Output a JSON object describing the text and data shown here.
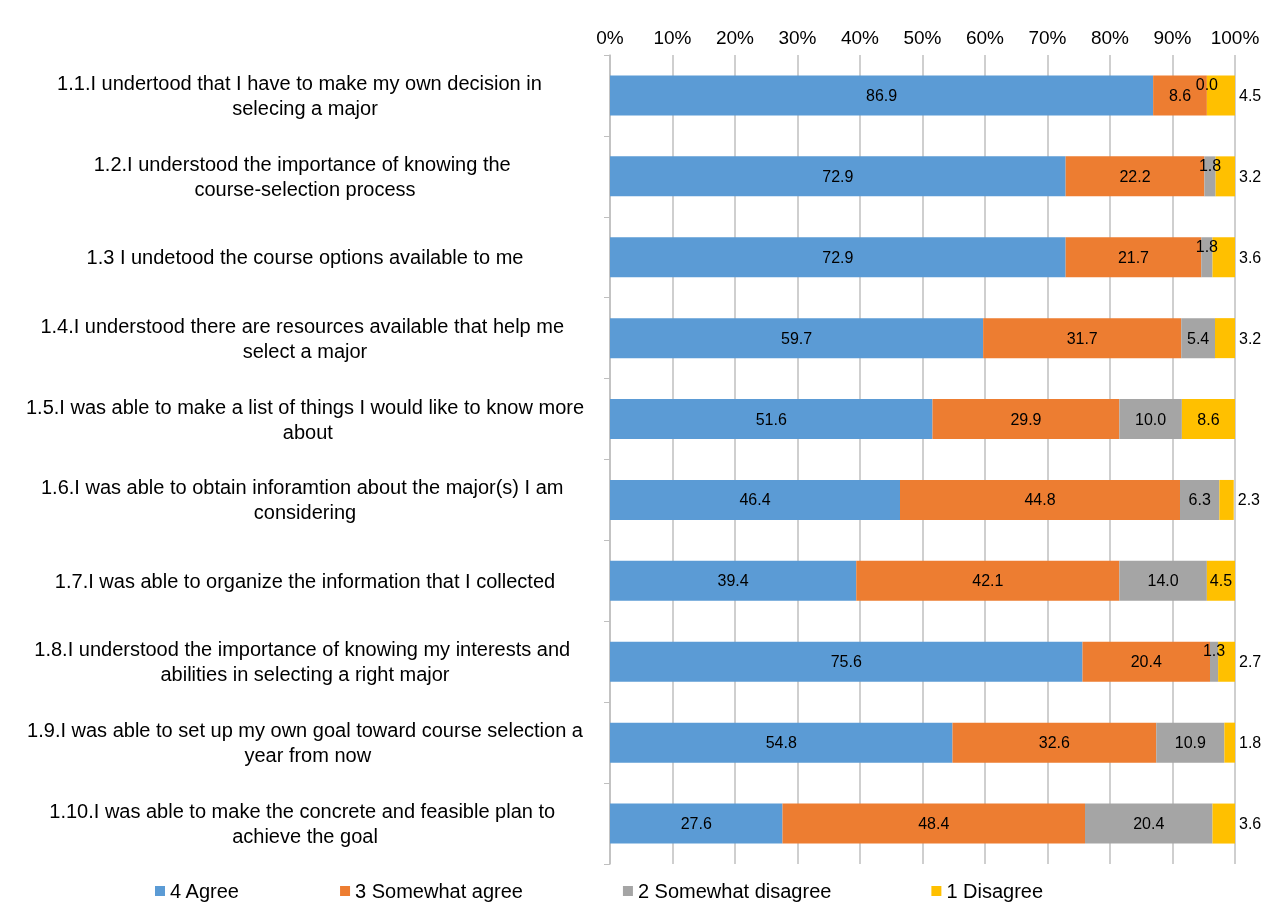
{
  "chart_data": {
    "type": "bar",
    "orientation": "horizontal",
    "stacked": true,
    "grid": "x",
    "legend": "bottom",
    "categories": [
      "1.1.I undertood that I have to make my own decision in  selecing a major",
      "1.2.I understood the importance of knowing the course-selection process",
      "1.3 I undetood the course options available to me",
      "1.4.I understood there are resources available that help me select a major",
      "1.5.I was able to make a list of things I would like to know more about",
      "1.6.I was able to obtain inforamtion about the major(s) I am considering",
      "1.7.I was able to organize the information that I collected",
      "1.8.I understood the importance of knowing my interests and abilities in selecting a right major",
      "1.9.I was able to set up my own goal toward course selection a year from now",
      "1.10.I was able to make the concrete and feasible plan to achieve the goal"
    ],
    "series": [
      {
        "name": "4 Agree",
        "color": "#5b9bd5",
        "values": [
          86.9,
          72.9,
          72.9,
          59.7,
          51.6,
          46.4,
          39.4,
          75.6,
          54.8,
          27.6
        ],
        "value_labels": [
          "86.9",
          "72.9",
          "72.9",
          "59.7",
          "51.6",
          "46.4",
          "39.4",
          "75.6",
          "54.8",
          "27.6"
        ]
      },
      {
        "name": "3 Somewhat agree",
        "color": "#ed7d31",
        "values": [
          8.6,
          22.2,
          21.7,
          31.7,
          29.9,
          44.8,
          42.1,
          20.4,
          32.6,
          48.4
        ],
        "value_labels": [
          "8.6",
          "22.2",
          "21.7",
          "31.7",
          "29.9",
          "44.8",
          "42.1",
          "20.4",
          "32.6",
          "48.4"
        ]
      },
      {
        "name": "2 Somewhat disagree",
        "color": "#a5a5a5",
        "values": [
          0.0,
          1.8,
          1.8,
          5.4,
          10.0,
          6.3,
          14.0,
          1.3,
          10.9,
          20.4
        ],
        "value_labels": [
          "0.0",
          "1.8",
          "1.8",
          "5.4",
          "10.0",
          "6.3",
          "14.0",
          "1.3",
          "10.9",
          "20.4"
        ]
      },
      {
        "name": "1 Disagree",
        "color": "#ffc000",
        "values": [
          4.5,
          3.2,
          3.6,
          3.2,
          8.6,
          2.3,
          4.5,
          2.7,
          1.8,
          3.6
        ],
        "value_labels": [
          "4.5",
          "3.2",
          "3.6",
          "3.2",
          "8.6",
          "2.3",
          "4.5",
          "2.7",
          "1.8",
          "3.6"
        ]
      }
    ],
    "xlim": [
      0,
      100
    ],
    "xticks": [
      {
        "value": 0,
        "label": "0%"
      },
      {
        "value": 10,
        "label": "10%"
      },
      {
        "value": 20,
        "label": "20%"
      },
      {
        "value": 30,
        "label": "30%"
      },
      {
        "value": 40,
        "label": "40%"
      },
      {
        "value": 50,
        "label": "50%"
      },
      {
        "value": 60,
        "label": "60%"
      },
      {
        "value": 70,
        "label": "70%"
      },
      {
        "value": 80,
        "label": "80%"
      },
      {
        "value": 90,
        "label": "90%"
      },
      {
        "value": 100,
        "label": "100%"
      }
    ]
  }
}
